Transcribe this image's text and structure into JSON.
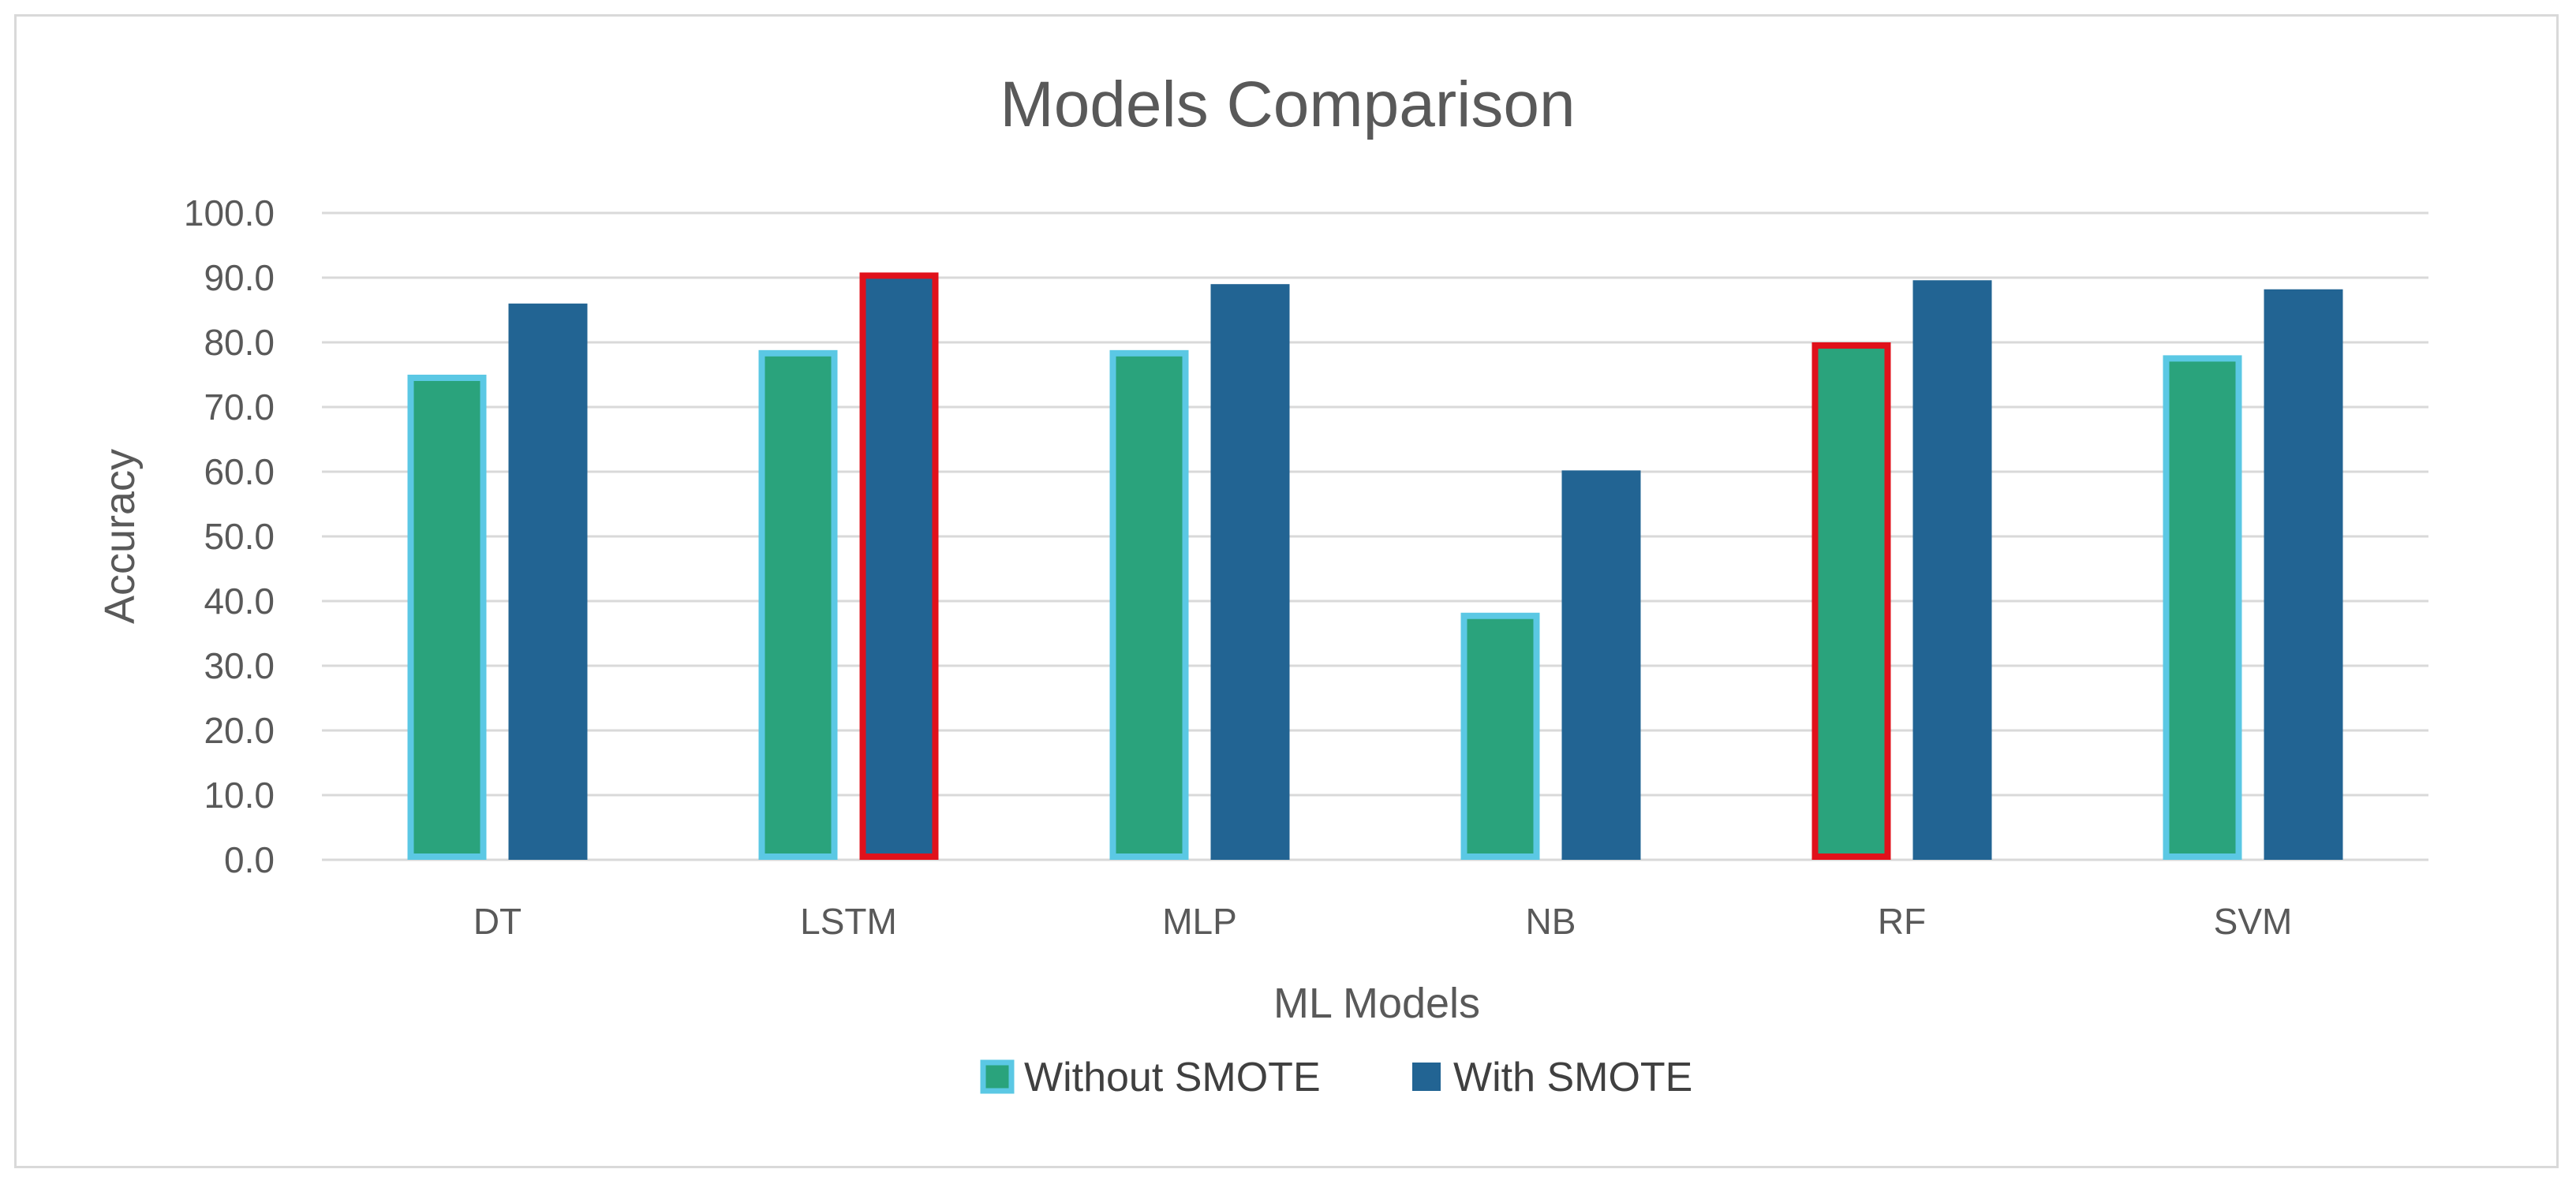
{
  "chart_data": {
    "type": "bar",
    "title": "Models Comparison",
    "xlabel": "ML Models",
    "ylabel": "Accuracy",
    "ylim": [
      0,
      100
    ],
    "ytick_step": 10,
    "ytick_decimals": 1,
    "grid": true,
    "legend_position": "bottom",
    "categories": [
      "DT",
      "LSTM",
      "MLP",
      "NB",
      "RF",
      "SVM"
    ],
    "series": [
      {
        "name": "Without SMOTE",
        "color": "#2aa37c",
        "outline_color": "#5bc8e4",
        "values": [
          75.0,
          78.8,
          78.8,
          38.2,
          80.0,
          78.0
        ],
        "highlighted": [
          false,
          false,
          false,
          false,
          true,
          false
        ]
      },
      {
        "name": "With SMOTE",
        "color": "#226493",
        "outline_color": "#226493",
        "values": [
          86.0,
          90.8,
          89.0,
          60.2,
          89.6,
          88.2
        ],
        "highlighted": [
          false,
          true,
          false,
          false,
          false,
          false
        ]
      }
    ],
    "highlight_color": "#e0111b"
  }
}
